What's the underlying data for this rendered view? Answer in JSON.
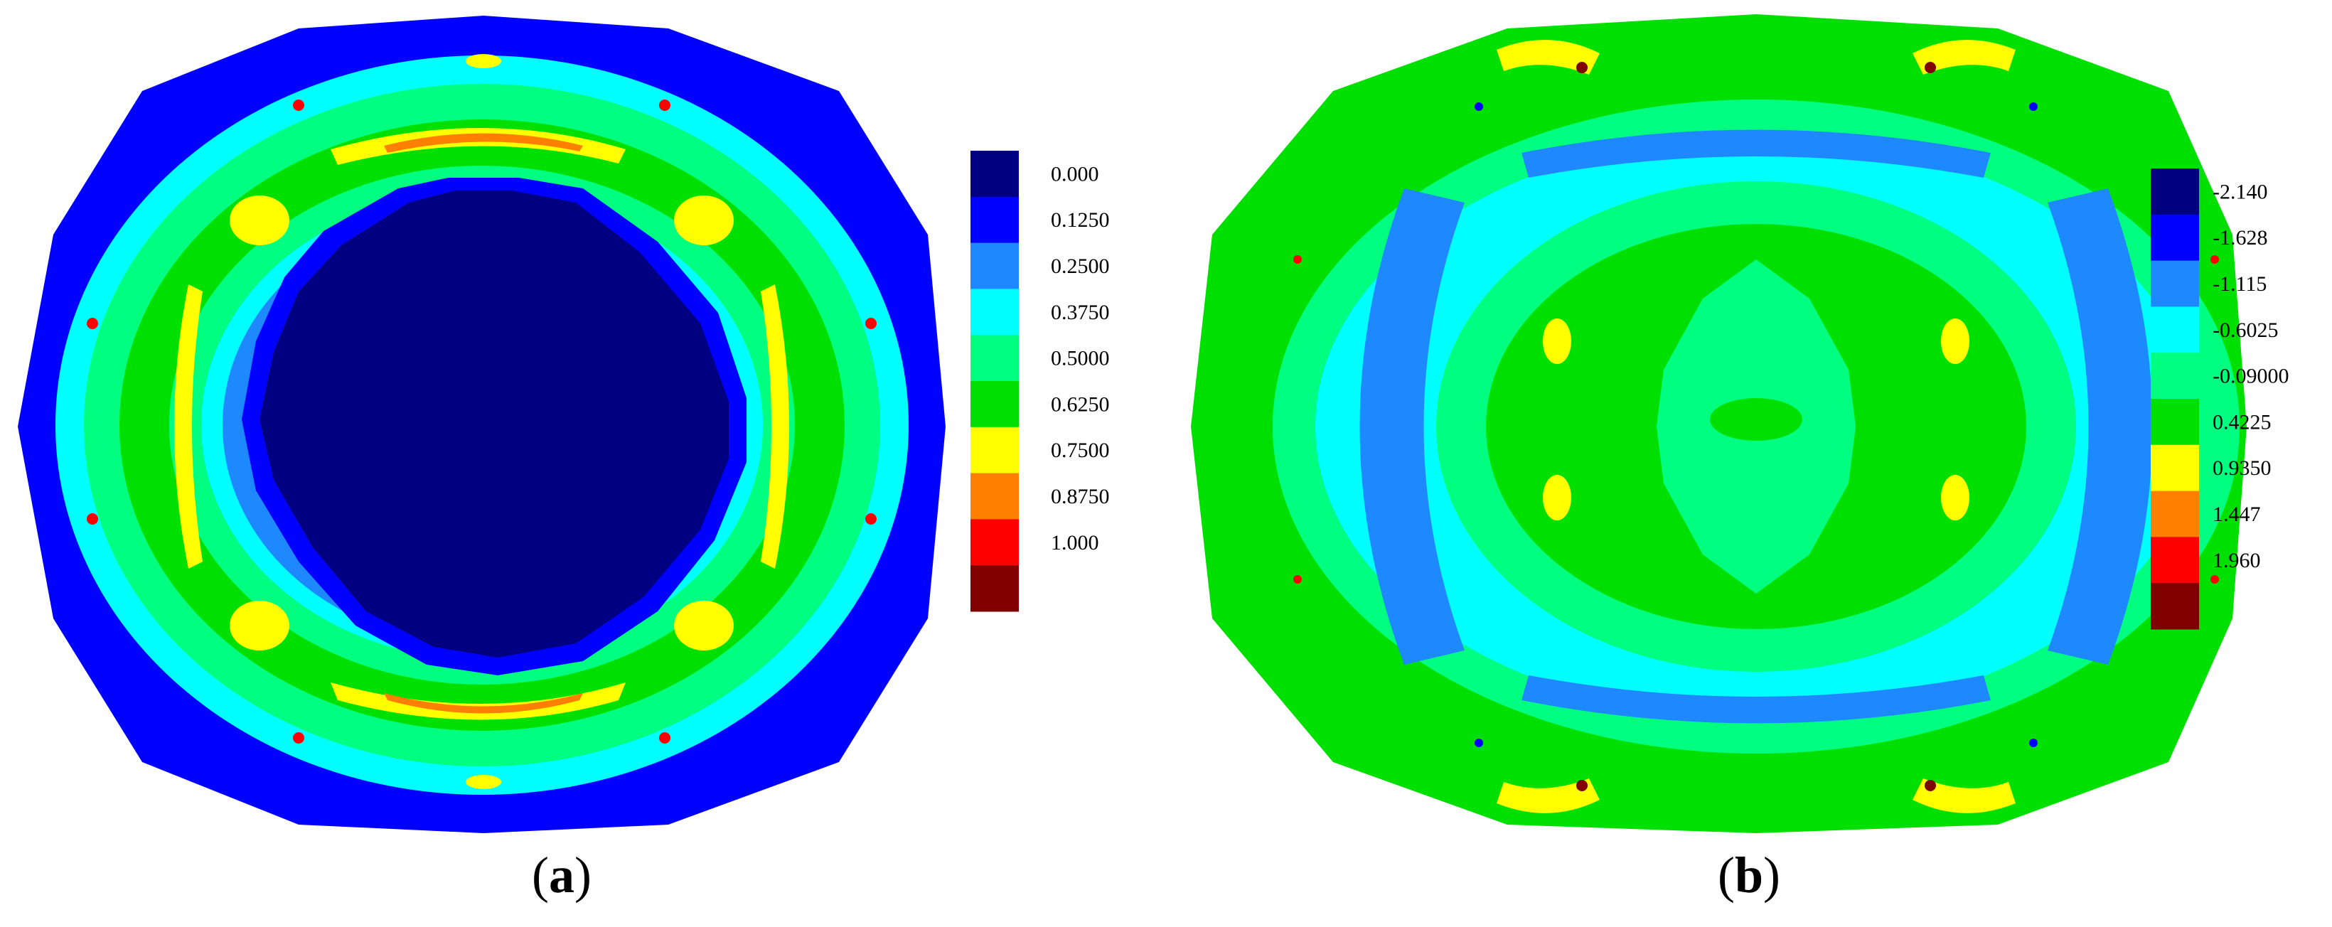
{
  "chart_data": [
    {
      "type": "heatmap",
      "description_kind": "contour",
      "title": "",
      "panel_label": {
        "open": "(",
        "letter": "a",
        "close": ")"
      },
      "colorbar": {
        "labels": [
          "0.000",
          "0.1250",
          "0.2500",
          "0.3750",
          "0.5000",
          "0.6250",
          "0.7500",
          "0.8750",
          "1.000"
        ],
        "colors": [
          "#000080",
          "#0000FF",
          "#1E88FF",
          "#00FFFF",
          "#00FF80",
          "#00E000",
          "#FFFF00",
          "#FF8000",
          "#FF0000",
          "#800000"
        ]
      }
    },
    {
      "type": "heatmap",
      "description_kind": "contour",
      "title": "",
      "panel_label": {
        "open": "(",
        "letter": "b",
        "close": ")"
      },
      "colorbar": {
        "labels": [
          "-2.140",
          "-1.628",
          "-1.115",
          "-0.6025",
          "-0.09000",
          "0.4225",
          "0.9350",
          "1.447",
          "1.960"
        ],
        "colors": [
          "#000080",
          "#0000FF",
          "#1E88FF",
          "#00FFFF",
          "#00FF80",
          "#00E000",
          "#FFFF00",
          "#FF8000",
          "#FF0000",
          "#800000"
        ]
      }
    }
  ]
}
